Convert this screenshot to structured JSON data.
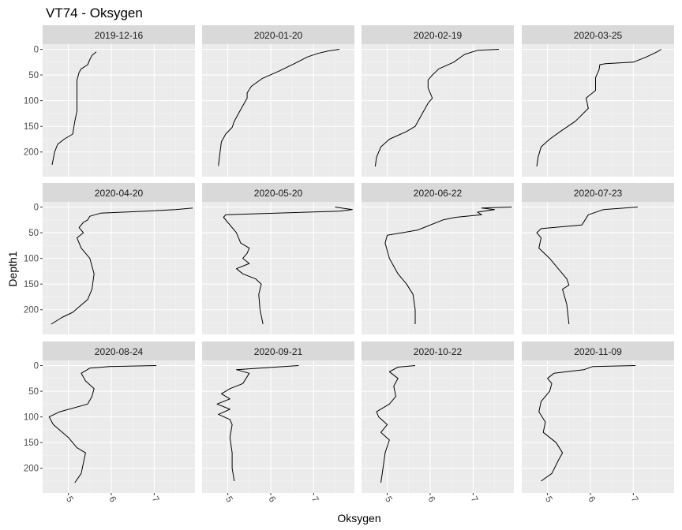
{
  "title": "VT74  -  Oksygen",
  "chart_data": {
    "type": "line",
    "facet_type": "small-multiples 3x4",
    "title": "VT74  -  Oksygen",
    "xlabel": "Oksygen",
    "ylabel": "Depth1",
    "xlim": [
      4.4,
      7.95
    ],
    "ylim": [
      248,
      -10
    ],
    "y_reversed": true,
    "xticks": [
      5,
      6,
      7
    ],
    "yticks": [
      0,
      50,
      100,
      150,
      200
    ],
    "grid": true,
    "panels": [
      {
        "label": "2019-12-16",
        "x": [
          5.65,
          5.55,
          5.5,
          5.45,
          5.3,
          5.25,
          5.2,
          5.2,
          5.2,
          5.2,
          5.15,
          5.1,
          4.9,
          4.75,
          4.68,
          4.62
        ],
        "y": [
          5,
          12,
          20,
          30,
          38,
          45,
          60,
          80,
          100,
          120,
          140,
          165,
          175,
          185,
          200,
          225
        ]
      },
      {
        "label": "2020-01-20",
        "x": [
          7.6,
          7.35,
          7.1,
          6.85,
          6.55,
          6.2,
          5.8,
          5.55,
          5.45,
          5.45,
          5.35,
          5.25,
          5.15,
          5.1,
          4.95,
          4.85,
          4.82,
          4.78
        ],
        "y": [
          0,
          3,
          8,
          15,
          28,
          42,
          57,
          72,
          85,
          95,
          110,
          125,
          140,
          152,
          165,
          180,
          200,
          227
        ]
      },
      {
        "label": "2020-02-19",
        "x": [
          7.6,
          7.1,
          6.8,
          6.55,
          6.2,
          6.05,
          5.95,
          5.95,
          6.05,
          5.95,
          5.85,
          5.75,
          5.65,
          5.45,
          5.05,
          4.85,
          4.75,
          4.72
        ],
        "y": [
          0,
          2,
          10,
          25,
          38,
          50,
          60,
          75,
          95,
          105,
          120,
          135,
          150,
          160,
          175,
          190,
          210,
          228
        ]
      },
      {
        "label": "2020-03-25",
        "x": [
          7.65,
          7.55,
          7.3,
          7.0,
          6.35,
          6.22,
          6.2,
          6.12,
          6.12,
          5.9,
          5.95,
          5.65,
          5.3,
          5.05,
          4.85,
          4.78,
          4.75
        ],
        "y": [
          0,
          5,
          15,
          25,
          28,
          30,
          40,
          55,
          80,
          95,
          115,
          140,
          160,
          175,
          190,
          210,
          228
        ]
      },
      {
        "label": "2020-04-20",
        "x": [
          7.9,
          7.5,
          6.8,
          5.75,
          5.5,
          5.45,
          5.35,
          5.25,
          5.35,
          5.2,
          5.3,
          5.5,
          5.6,
          5.55,
          5.45,
          5.1,
          4.85,
          4.6
        ],
        "y": [
          2,
          5,
          8,
          12,
          18,
          25,
          30,
          40,
          50,
          60,
          80,
          100,
          130,
          160,
          180,
          205,
          215,
          228
        ]
      },
      {
        "label": "2020-05-20",
        "x": [
          7.5,
          7.9,
          7.6,
          4.95,
          4.9,
          5.0,
          5.2,
          5.3,
          5.5,
          5.45,
          5.35,
          5.5,
          5.2,
          5.35,
          5.65,
          5.78,
          5.72,
          5.75,
          5.82
        ],
        "y": [
          0,
          5,
          8,
          15,
          20,
          30,
          50,
          70,
          80,
          90,
          100,
          110,
          120,
          130,
          140,
          150,
          170,
          200,
          228
        ]
      },
      {
        "label": "2020-06-22",
        "x": [
          7.9,
          7.2,
          7.5,
          7.1,
          7.2,
          6.6,
          6.3,
          5.85,
          5.7,
          5.0,
          4.95,
          5.05,
          5.25,
          5.45,
          5.6,
          5.65,
          5.65
        ],
        "y": [
          0,
          2,
          5,
          10,
          15,
          20,
          25,
          40,
          45,
          55,
          70,
          100,
          130,
          150,
          170,
          200,
          228
        ]
      },
      {
        "label": "2020-07-23",
        "x": [
          7.1,
          6.3,
          5.95,
          5.8,
          4.85,
          4.75,
          4.85,
          4.8,
          5.05,
          5.25,
          5.45,
          5.5,
          5.35,
          5.45,
          5.5
        ],
        "y": [
          0,
          5,
          15,
          35,
          42,
          50,
          60,
          80,
          100,
          120,
          140,
          152,
          160,
          190,
          228
        ]
      },
      {
        "label": "2020-08-24",
        "x": [
          7.05,
          5.95,
          5.5,
          5.3,
          5.4,
          5.6,
          5.55,
          5.45,
          4.8,
          4.55,
          4.65,
          5.0,
          5.2,
          5.4,
          5.35,
          5.3,
          5.15
        ],
        "y": [
          0,
          2,
          5,
          15,
          30,
          45,
          60,
          75,
          90,
          100,
          115,
          140,
          160,
          170,
          190,
          210,
          228
        ]
      },
      {
        "label": "2020-09-21",
        "x": [
          6.65,
          5.2,
          5.5,
          5.35,
          5.05,
          4.85,
          5.05,
          4.75,
          5.05,
          4.78,
          5.05,
          5.1,
          5.05,
          5.1,
          5.1,
          5.15
        ],
        "y": [
          0,
          8,
          15,
          35,
          45,
          55,
          65,
          75,
          85,
          95,
          105,
          115,
          140,
          170,
          200,
          225
        ]
      },
      {
        "label": "2020-10-22",
        "x": [
          5.65,
          5.25,
          5.05,
          5.25,
          5.15,
          5.2,
          5.05,
          4.75,
          4.8,
          5.0,
          4.85,
          5.05,
          4.95,
          4.9,
          4.85
        ],
        "y": [
          0,
          3,
          12,
          25,
          40,
          60,
          75,
          90,
          100,
          115,
          130,
          145,
          170,
          200,
          228
        ]
      },
      {
        "label": "2020-11-09",
        "x": [
          7.05,
          6.05,
          5.85,
          5.45,
          5.15,
          5.0,
          5.1,
          5.05,
          4.85,
          4.8,
          4.95,
          4.9,
          5.2,
          5.35,
          5.25,
          5.1,
          4.85
        ],
        "y": [
          0,
          2,
          8,
          12,
          15,
          25,
          35,
          50,
          70,
          90,
          110,
          130,
          150,
          170,
          185,
          210,
          225
        ]
      }
    ]
  }
}
